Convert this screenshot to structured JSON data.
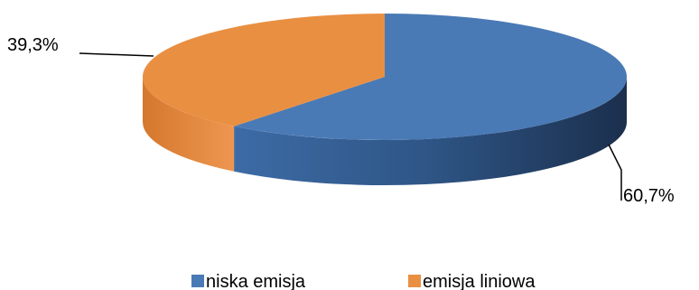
{
  "chart_data": {
    "type": "pie",
    "title": "",
    "categories": [
      "niska emisja",
      "emisja liniowa"
    ],
    "values": [
      60.7,
      39.3
    ],
    "data_labels": [
      "60,7%",
      "39,3%"
    ],
    "colors": [
      "#4A7AB5",
      "#E98F42"
    ],
    "legend": {
      "placement": "bottom",
      "entries": [
        {
          "name": "niska emisja",
          "color": "#4A7AB5"
        },
        {
          "name": "emisja liniowa",
          "color": "#E98F42"
        }
      ]
    },
    "style": "3d"
  }
}
